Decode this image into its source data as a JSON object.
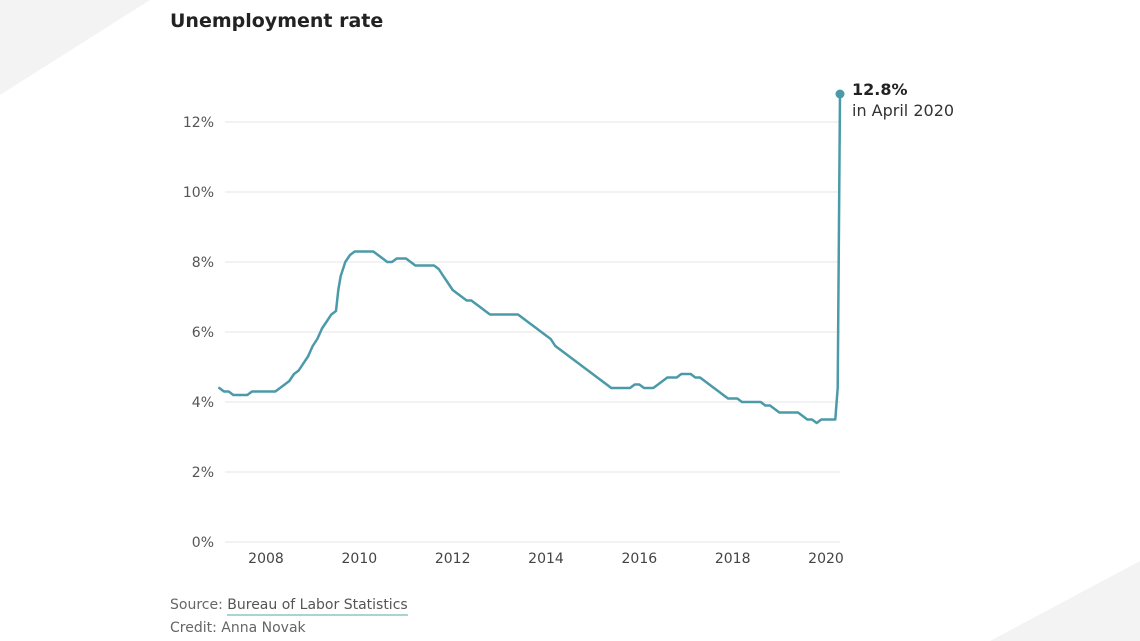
{
  "title": "Unemployment rate",
  "chart_data": {
    "type": "line",
    "title": "Unemployment rate",
    "ylim": [
      0,
      13
    ],
    "yticks": [
      "0%",
      "2%",
      "4%",
      "6%",
      "8%",
      "10%",
      "12%"
    ],
    "ytick_values": [
      0,
      2,
      4,
      6,
      8,
      10,
      12
    ],
    "xticks": [
      "2008",
      "2010",
      "2012",
      "2014",
      "2016",
      "2018",
      "2020"
    ],
    "xtick_values": [
      2008,
      2010,
      2012,
      2014,
      2016,
      2018,
      2020
    ],
    "xlim": [
      2007.0,
      2020.3
    ],
    "grid": true,
    "line_color": "#4b9aa8",
    "series": [
      {
        "points": [
          [
            2007.0,
            4.4
          ],
          [
            2007.1,
            4.3
          ],
          [
            2007.2,
            4.3
          ],
          [
            2007.3,
            4.2
          ],
          [
            2007.5,
            4.2
          ],
          [
            2007.6,
            4.2
          ],
          [
            2007.7,
            4.3
          ],
          [
            2007.9,
            4.3
          ],
          [
            2008.1,
            4.3
          ],
          [
            2008.2,
            4.3
          ],
          [
            2008.3,
            4.4
          ],
          [
            2008.4,
            4.5
          ],
          [
            2008.5,
            4.6
          ],
          [
            2008.6,
            4.8
          ],
          [
            2008.7,
            4.9
          ],
          [
            2008.8,
            5.1
          ],
          [
            2008.9,
            5.3
          ],
          [
            2009.0,
            5.6
          ],
          [
            2009.1,
            5.8
          ],
          [
            2009.2,
            6.1
          ],
          [
            2009.3,
            6.3
          ],
          [
            2009.4,
            6.5
          ],
          [
            2009.5,
            6.6
          ],
          [
            2009.55,
            7.2
          ],
          [
            2009.6,
            7.6
          ],
          [
            2009.7,
            8.0
          ],
          [
            2009.8,
            8.2
          ],
          [
            2009.9,
            8.3
          ],
          [
            2010.1,
            8.3
          ],
          [
            2010.3,
            8.3
          ],
          [
            2010.4,
            8.2
          ],
          [
            2010.5,
            8.1
          ],
          [
            2010.6,
            8.0
          ],
          [
            2010.7,
            8.0
          ],
          [
            2010.8,
            8.1
          ],
          [
            2011.0,
            8.1
          ],
          [
            2011.1,
            8.0
          ],
          [
            2011.2,
            7.9
          ],
          [
            2011.4,
            7.9
          ],
          [
            2011.6,
            7.9
          ],
          [
            2011.7,
            7.8
          ],
          [
            2011.8,
            7.6
          ],
          [
            2011.9,
            7.4
          ],
          [
            2012.0,
            7.2
          ],
          [
            2012.1,
            7.1
          ],
          [
            2012.2,
            7.0
          ],
          [
            2012.3,
            6.9
          ],
          [
            2012.4,
            6.9
          ],
          [
            2012.5,
            6.8
          ],
          [
            2012.6,
            6.7
          ],
          [
            2012.7,
            6.6
          ],
          [
            2012.8,
            6.5
          ],
          [
            2013.0,
            6.5
          ],
          [
            2013.2,
            6.5
          ],
          [
            2013.4,
            6.5
          ],
          [
            2013.5,
            6.4
          ],
          [
            2013.6,
            6.3
          ],
          [
            2013.7,
            6.2
          ],
          [
            2013.8,
            6.1
          ],
          [
            2013.9,
            6.0
          ],
          [
            2014.0,
            5.9
          ],
          [
            2014.1,
            5.8
          ],
          [
            2014.2,
            5.6
          ],
          [
            2014.3,
            5.5
          ],
          [
            2014.4,
            5.4
          ],
          [
            2014.5,
            5.3
          ],
          [
            2014.6,
            5.2
          ],
          [
            2014.7,
            5.1
          ],
          [
            2014.8,
            5.0
          ],
          [
            2014.9,
            4.9
          ],
          [
            2015.0,
            4.8
          ],
          [
            2015.1,
            4.7
          ],
          [
            2015.2,
            4.6
          ],
          [
            2015.3,
            4.5
          ],
          [
            2015.4,
            4.4
          ],
          [
            2015.6,
            4.4
          ],
          [
            2015.8,
            4.4
          ],
          [
            2015.9,
            4.5
          ],
          [
            2016.0,
            4.5
          ],
          [
            2016.1,
            4.4
          ],
          [
            2016.2,
            4.4
          ],
          [
            2016.3,
            4.4
          ],
          [
            2016.4,
            4.5
          ],
          [
            2016.5,
            4.6
          ],
          [
            2016.6,
            4.7
          ],
          [
            2016.8,
            4.7
          ],
          [
            2016.9,
            4.8
          ],
          [
            2017.1,
            4.8
          ],
          [
            2017.2,
            4.7
          ],
          [
            2017.3,
            4.7
          ],
          [
            2017.4,
            4.6
          ],
          [
            2017.5,
            4.5
          ],
          [
            2017.6,
            4.4
          ],
          [
            2017.7,
            4.3
          ],
          [
            2017.8,
            4.2
          ],
          [
            2017.9,
            4.1
          ],
          [
            2018.1,
            4.1
          ],
          [
            2018.2,
            4.0
          ],
          [
            2018.4,
            4.0
          ],
          [
            2018.6,
            4.0
          ],
          [
            2018.7,
            3.9
          ],
          [
            2018.8,
            3.9
          ],
          [
            2018.9,
            3.8
          ],
          [
            2019.0,
            3.7
          ],
          [
            2019.2,
            3.7
          ],
          [
            2019.4,
            3.7
          ],
          [
            2019.5,
            3.6
          ],
          [
            2019.6,
            3.5
          ],
          [
            2019.7,
            3.5
          ],
          [
            2019.8,
            3.4
          ],
          [
            2019.9,
            3.5
          ],
          [
            2020.1,
            3.5
          ],
          [
            2020.2,
            3.5
          ],
          [
            2020.25,
            4.4
          ],
          [
            2020.3,
            12.8
          ]
        ]
      }
    ],
    "annotation": {
      "x": 2020.3,
      "y": 12.8,
      "value": "12.8%",
      "label": "in April 2020"
    }
  },
  "footer": {
    "source_prefix": "Source: ",
    "source_link": "Bureau of Labor Statistics",
    "credit": "Credit: Anna Novak"
  }
}
